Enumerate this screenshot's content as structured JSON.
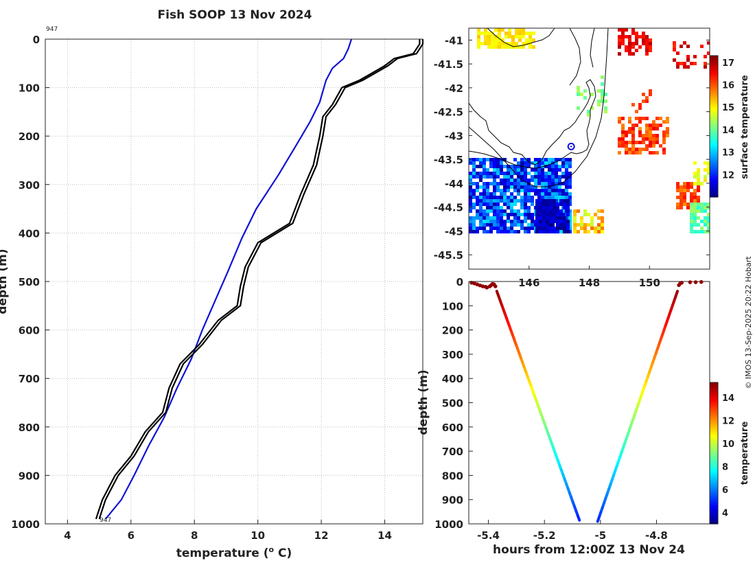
{
  "title": "Fish SOOP 13 Nov 2024",
  "copyright": "© IMOS 13-Sep-2025 20:22 Hobart",
  "chart_data": [
    {
      "type": "line",
      "name": "temperature-profile",
      "xlabel": "temperature (",
      "xlabel_sup": "o",
      "xlabel_end": " C)",
      "ylabel": "depth (m)",
      "xlim": [
        3.3,
        15.2
      ],
      "ylim": [
        0,
        1000
      ],
      "xticks": [
        "4",
        "6",
        "8",
        "10",
        "12",
        "14"
      ],
      "yticks": [
        "0",
        "100",
        "200",
        "300",
        "400",
        "500",
        "600",
        "700",
        "800",
        "900",
        "1000"
      ],
      "annotation_top": "947",
      "annotation_bottom": "947",
      "series": [
        {
          "name": "climatology",
          "color": "#1010d8",
          "points": [
            [
              12.95,
              0
            ],
            [
              12.85,
              20
            ],
            [
              12.7,
              40
            ],
            [
              12.35,
              60
            ],
            [
              12.15,
              85
            ],
            [
              11.95,
              130
            ],
            [
              11.65,
              170
            ],
            [
              11.2,
              220
            ],
            [
              10.65,
              280
            ],
            [
              9.95,
              350
            ],
            [
              9.5,
              410
            ],
            [
              9.05,
              480
            ],
            [
              8.65,
              540
            ],
            [
              8.25,
              600
            ],
            [
              7.9,
              660
            ],
            [
              7.45,
              720
            ],
            [
              7.05,
              780
            ],
            [
              6.55,
              840
            ],
            [
              6.1,
              900
            ],
            [
              5.7,
              950
            ],
            [
              5.2,
              990
            ]
          ]
        },
        {
          "name": "cast-1",
          "color": "#000000",
          "points": [
            [
              15.1,
              0
            ],
            [
              15.1,
              10
            ],
            [
              14.9,
              30
            ],
            [
              14.3,
              40
            ],
            [
              14.0,
              55
            ],
            [
              13.6,
              70
            ],
            [
              13.2,
              85
            ],
            [
              12.65,
              100
            ],
            [
              12.35,
              135
            ],
            [
              12.05,
              160
            ],
            [
              11.95,
              200
            ],
            [
              11.75,
              260
            ],
            [
              11.35,
              320
            ],
            [
              11.0,
              380
            ],
            [
              10.0,
              420
            ],
            [
              9.6,
              470
            ],
            [
              9.45,
              510
            ],
            [
              9.35,
              550
            ],
            [
              8.75,
              580
            ],
            [
              8.15,
              630
            ],
            [
              7.55,
              670
            ],
            [
              7.2,
              720
            ],
            [
              7.0,
              770
            ],
            [
              6.45,
              810
            ],
            [
              6.0,
              860
            ],
            [
              5.5,
              900
            ],
            [
              5.1,
              950
            ],
            [
              4.9,
              990
            ]
          ]
        },
        {
          "name": "cast-2",
          "color": "#000000",
          "points": [
            [
              15.2,
              0
            ],
            [
              15.2,
              10
            ],
            [
              15.0,
              30
            ],
            [
              14.4,
              40
            ],
            [
              14.1,
              55
            ],
            [
              13.7,
              70
            ],
            [
              13.3,
              85
            ],
            [
              12.75,
              100
            ],
            [
              12.45,
              135
            ],
            [
              12.15,
              160
            ],
            [
              12.05,
              200
            ],
            [
              11.85,
              260
            ],
            [
              11.45,
              320
            ],
            [
              11.1,
              380
            ],
            [
              10.1,
              420
            ],
            [
              9.7,
              470
            ],
            [
              9.55,
              510
            ],
            [
              9.45,
              550
            ],
            [
              8.85,
              580
            ],
            [
              8.25,
              630
            ],
            [
              7.65,
              670
            ],
            [
              7.3,
              720
            ],
            [
              7.1,
              770
            ],
            [
              6.55,
              810
            ],
            [
              6.1,
              860
            ],
            [
              5.6,
              900
            ],
            [
              5.2,
              950
            ],
            [
              5.0,
              990
            ]
          ]
        }
      ]
    },
    {
      "type": "heatmap",
      "name": "surface-temperature-map",
      "colorbar_label": "surface temperature",
      "colorbar_range": [
        11,
        17.3
      ],
      "colorbar_ticks": [
        "12",
        "13",
        "14",
        "15",
        "16",
        "17"
      ],
      "yticks": [
        "-41",
        "-41.5",
        "-42",
        "-42.5",
        "-43",
        "-43.5",
        "-44",
        "-44.5",
        "-45",
        "-45.5"
      ],
      "xticks": [
        "146",
        "148",
        "150"
      ],
      "ylim": [
        -45.8,
        -40.75
      ],
      "xlim": [
        144.0,
        152.0
      ],
      "marker": {
        "lon": 147.4,
        "lat": -43.23
      }
    },
    {
      "type": "scatter",
      "name": "section-plot",
      "xlabel": "hours from 12:00Z 13 Nov 24",
      "ylabel": "depth (m)",
      "xlim": [
        -5.47,
        -4.61
      ],
      "ylim": [
        0,
        1000
      ],
      "xticks": [
        "-5.4",
        "-5.2",
        "-5",
        "-4.8"
      ],
      "yticks": [
        "0",
        "100",
        "200",
        "300",
        "400",
        "500",
        "600",
        "700",
        "800",
        "900",
        "1000"
      ],
      "colorbar_label": "temperature",
      "colorbar_range": [
        3,
        15.3
      ],
      "colorbar_ticks": [
        "4",
        "6",
        "8",
        "10",
        "12",
        "14"
      ],
      "segments": [
        {
          "name": "descent-1",
          "x": [
            -5.37,
            -5.075
          ],
          "depth": [
            40,
            985
          ],
          "temp": [
            15.1,
            4.9
          ]
        },
        {
          "name": "descent-2",
          "x": [
            -4.725,
            -5.01
          ],
          "depth": [
            40,
            990
          ],
          "temp": [
            15.1,
            5.0
          ]
        }
      ],
      "surface_points": [
        [
          -5.46,
          5
        ],
        [
          -5.45,
          8
        ],
        [
          -5.44,
          12
        ],
        [
          -5.43,
          16
        ],
        [
          -5.42,
          20
        ],
        [
          -5.41,
          22
        ],
        [
          -5.405,
          25
        ],
        [
          -5.395,
          20
        ],
        [
          -5.39,
          15
        ],
        [
          -5.385,
          10
        ],
        [
          -5.38,
          12
        ],
        [
          -5.375,
          20
        ],
        [
          -4.72,
          15
        ],
        [
          -4.715,
          8
        ],
        [
          -4.71,
          5
        ],
        [
          -4.68,
          3
        ],
        [
          -4.66,
          3
        ],
        [
          -4.64,
          2
        ]
      ],
      "surface_temp": 15.1
    }
  ]
}
